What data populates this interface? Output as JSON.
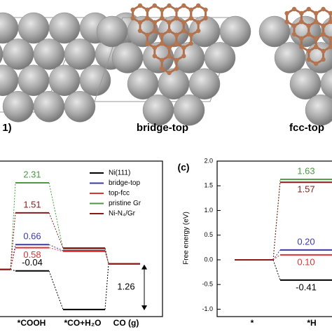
{
  "chart_data": [
    {
      "type": "energy-levels",
      "categories": [
        null,
        "*COOH",
        "*CO+H₂O",
        "CO (g)"
      ],
      "ylim": [
        -1.26,
        2.89
      ],
      "series": [
        {
          "name": "Ni(111)",
          "color": "#000000",
          "values": [
            0,
            -0.04,
            -1.07,
            0.15
          ]
        },
        {
          "name": "bridge-top",
          "color": "#3a3aa8",
          "values": [
            0,
            0.66,
            0.5,
            0.15
          ]
        },
        {
          "name": "top-fcc",
          "color": "#e03030",
          "values": [
            0,
            0.58,
            0.48,
            0.15
          ]
        },
        {
          "name": "pristine Gr",
          "color": "#4a9a40",
          "values": [
            0,
            2.31,
            0.55,
            0.15
          ]
        },
        {
          "name": "Ni-N₄/Gr",
          "color": "#8b1a1a",
          "values": [
            0,
            1.51,
            0.57,
            0.15
          ]
        }
      ],
      "annotation": {
        "label": "1.26",
        "value": 1.26
      }
    },
    {
      "type": "energy-levels",
      "title": "(c)",
      "ylabel": "Free energy (eV)",
      "categories": [
        "*",
        "*H"
      ],
      "ylim": [
        -1.15,
        2.0
      ],
      "yticks": [
        {
          "value": 2.0,
          "label": "2.0"
        },
        1.5,
        {
          "value": 1.0,
          "label": "1.0"
        },
        0.5,
        {
          "value": 0.0,
          "label": "0.0"
        },
        -0.5,
        {
          "value": -1.0,
          "label": "-1.0"
        }
      ],
      "series": [
        {
          "name": "Ni(111)",
          "color": "#000000",
          "values": [
            0,
            -0.41
          ]
        },
        {
          "name": "bridge-top",
          "color": "#3a3aa8",
          "values": [
            0,
            0.2
          ],
          "value_labels": [
            null,
            "0.20"
          ]
        },
        {
          "name": "top-fcc",
          "color": "#e03030",
          "values": [
            0,
            0.1
          ],
          "value_labels": [
            null,
            "0.10"
          ]
        },
        {
          "name": "pristine Gr",
          "color": "#4a9a40",
          "values": [
            0,
            1.63
          ]
        },
        {
          "name": "Ni-N₄/Gr",
          "color": "#8b1a1a",
          "values": [
            0,
            1.57
          ]
        }
      ]
    }
  ],
  "structures": [
    "1)",
    "bridge-top",
    "fcc-top"
  ]
}
